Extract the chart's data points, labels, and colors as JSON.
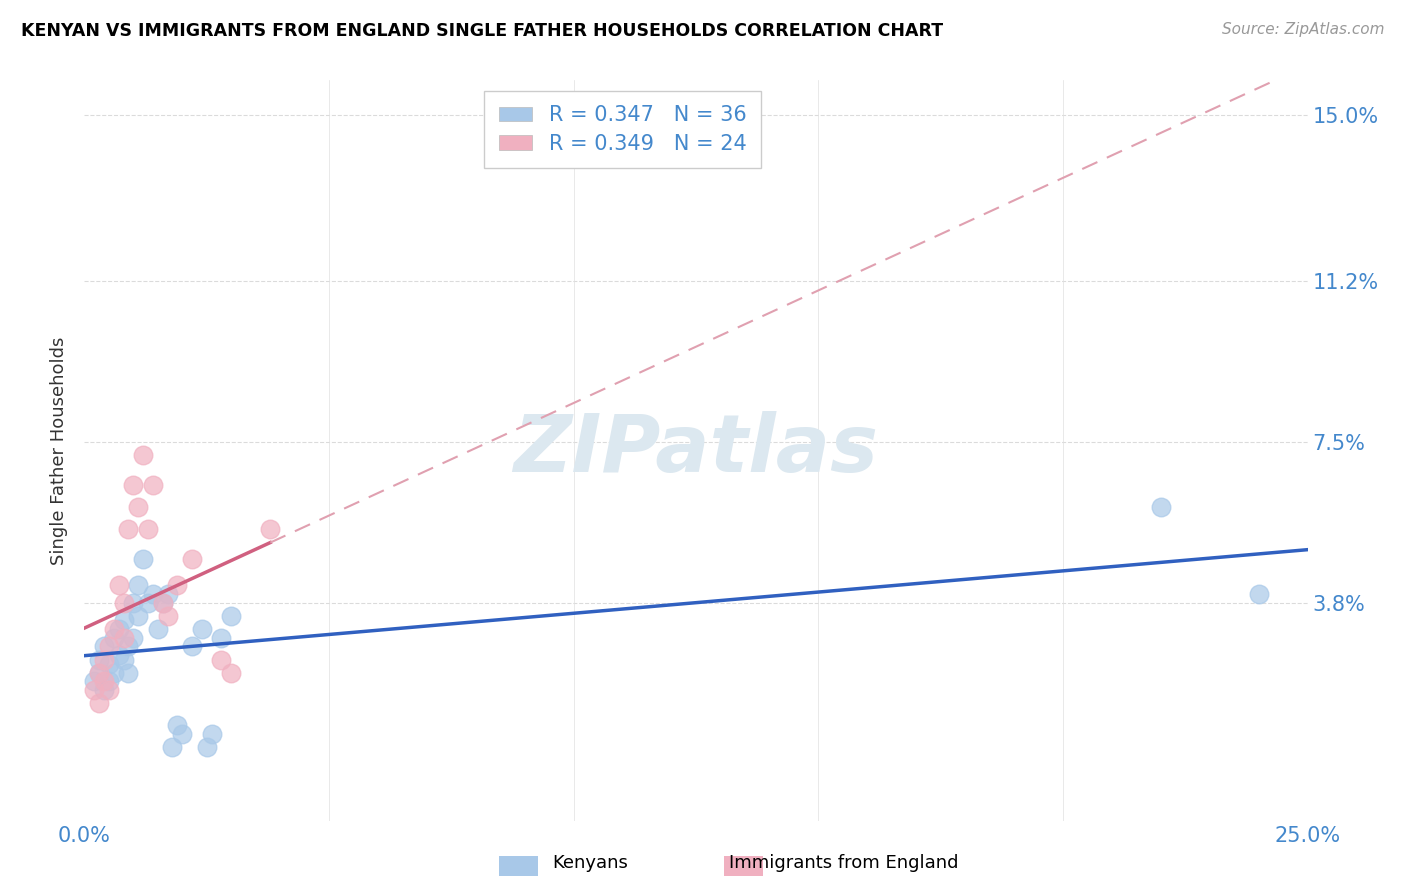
{
  "title": "KENYAN VS IMMIGRANTS FROM ENGLAND SINGLE FATHER HOUSEHOLDS CORRELATION CHART",
  "source": "Source: ZipAtlas.com",
  "ylabel_label": "Single Father Households",
  "x_min": 0.0,
  "x_max": 0.25,
  "y_min": -0.012,
  "y_max": 0.158,
  "x_ticks": [
    0.0,
    0.05,
    0.1,
    0.15,
    0.2,
    0.25
  ],
  "x_tick_labels": [
    "0.0%",
    "",
    "",
    "",
    "",
    "25.0%"
  ],
  "y_tick_labels_right": [
    "15.0%",
    "11.2%",
    "7.5%",
    "3.8%"
  ],
  "y_tick_values_right": [
    0.15,
    0.112,
    0.075,
    0.038
  ],
  "kenyan_color": "#a8c8e8",
  "england_color": "#f0b0c0",
  "kenyan_line_color": "#3060c0",
  "england_line_color_solid": "#d06080",
  "england_line_color_dash": "#e0a0b0",
  "R_kenyan": 0.347,
  "N_kenyan": 36,
  "R_england": 0.349,
  "N_england": 24,
  "kenyan_x": [
    0.002,
    0.003,
    0.003,
    0.004,
    0.004,
    0.005,
    0.005,
    0.006,
    0.006,
    0.007,
    0.007,
    0.008,
    0.008,
    0.009,
    0.009,
    0.01,
    0.01,
    0.011,
    0.011,
    0.012,
    0.013,
    0.014,
    0.015,
    0.016,
    0.017,
    0.018,
    0.019,
    0.02,
    0.022,
    0.024,
    0.025,
    0.026,
    0.028,
    0.03,
    0.22,
    0.24
  ],
  "kenyan_y": [
    0.02,
    0.022,
    0.025,
    0.018,
    0.028,
    0.02,
    0.024,
    0.022,
    0.03,
    0.026,
    0.032,
    0.025,
    0.034,
    0.028,
    0.022,
    0.03,
    0.038,
    0.035,
    0.042,
    0.048,
    0.038,
    0.04,
    0.032,
    0.038,
    0.04,
    0.005,
    0.01,
    0.008,
    0.028,
    0.032,
    0.005,
    0.008,
    0.03,
    0.035,
    0.06,
    0.04
  ],
  "england_x": [
    0.002,
    0.003,
    0.003,
    0.004,
    0.004,
    0.005,
    0.005,
    0.006,
    0.007,
    0.008,
    0.008,
    0.009,
    0.01,
    0.011,
    0.012,
    0.013,
    0.014,
    0.016,
    0.017,
    0.019,
    0.022,
    0.028,
    0.03,
    0.038
  ],
  "england_y": [
    0.018,
    0.022,
    0.015,
    0.025,
    0.02,
    0.028,
    0.018,
    0.032,
    0.042,
    0.03,
    0.038,
    0.055,
    0.065,
    0.06,
    0.072,
    0.055,
    0.065,
    0.038,
    0.035,
    0.042,
    0.048,
    0.025,
    0.022,
    0.055
  ],
  "background_color": "#ffffff",
  "grid_color": "#cccccc",
  "watermark_text": "ZIPatlas",
  "watermark_color": "#dce8f0"
}
